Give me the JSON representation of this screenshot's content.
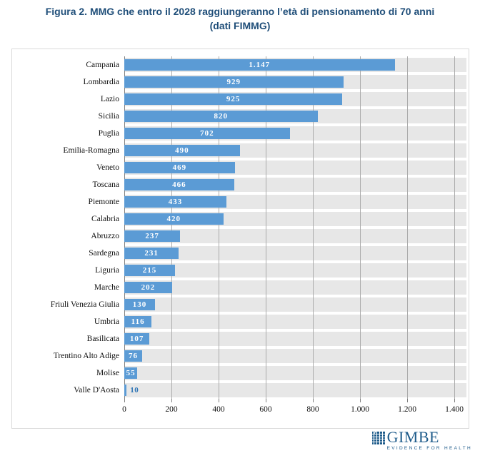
{
  "title": {
    "line1": "Figura 2. MMG che entro il 2028 raggiungeranno l’età di pensionamento di 70 anni",
    "line2": "(dati FIMMG)"
  },
  "chart_data": {
    "type": "bar",
    "orientation": "horizontal",
    "title": "Figura 2. MMG che entro il 2028 raggiungeranno l’età di pensionamento di 70 anni (dati FIMMG)",
    "categories": [
      "Campania",
      "Lombardia",
      "Lazio",
      "Sicilia",
      "Puglia",
      "Emilia-Romagna",
      "Veneto",
      "Toscana",
      "Piemonte",
      "Calabria",
      "Abruzzo",
      "Sardegna",
      "Liguria",
      "Marche",
      "Friuli Venezia Giulia",
      "Umbria",
      "Basilicata",
      "Trentino Alto Adige",
      "Molise",
      "Valle D'Aosta"
    ],
    "values": [
      1147,
      929,
      925,
      820,
      702,
      490,
      469,
      466,
      433,
      420,
      237,
      231,
      215,
      202,
      130,
      116,
      107,
      76,
      55,
      10
    ],
    "value_labels": [
      "1.147",
      "929",
      "925",
      "820",
      "702",
      "490",
      "469",
      "466",
      "433",
      "420",
      "237",
      "231",
      "215",
      "202",
      "130",
      "116",
      "107",
      "76",
      "55",
      "10"
    ],
    "xlim": [
      0,
      1400
    ],
    "xtick_values": [
      0,
      200,
      400,
      600,
      800,
      1000,
      1200,
      1400
    ],
    "xtick_labels": [
      "0",
      "200",
      "400",
      "600",
      "800",
      "1.000",
      "1.200",
      "1.400"
    ],
    "grid": true,
    "legend": false,
    "xlabel": "",
    "ylabel": ""
  },
  "colors": {
    "bar": "#5B9BD5",
    "title_text": "#1F4E79",
    "value_label_inside": "#FFFFFF",
    "value_label_outside": "#2E75B6",
    "plot_background": "#E7E7E7",
    "gridline": "#ABABAB",
    "panel_border": "#D9D9D9",
    "logo_blue": "#1F5C8B"
  },
  "logo": {
    "name": "GIMBE",
    "tagline": "EVIDENCE FOR HEALTH",
    "check_icon": "✓"
  }
}
